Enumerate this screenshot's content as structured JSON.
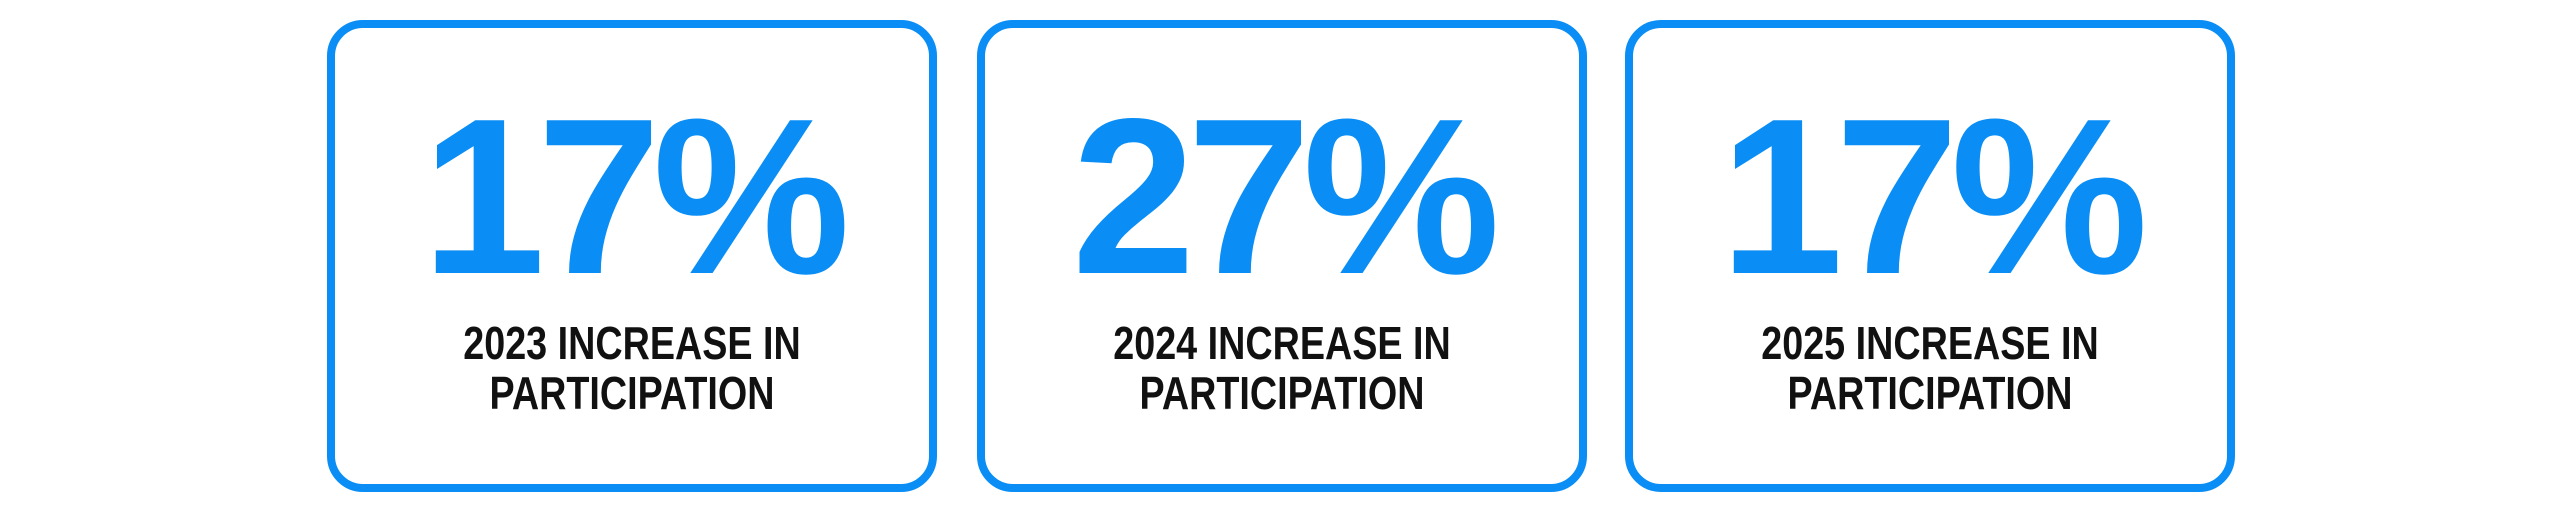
{
  "accent_color": "#0a8ef5",
  "cards": [
    {
      "value": "17%",
      "label_line1": "2023 INCREASE IN",
      "label_line2": "PARTICIPATION"
    },
    {
      "value": "27%",
      "label_line1": "2024 INCREASE IN",
      "label_line2": "PARTICIPATION"
    },
    {
      "value": "17%",
      "label_line1": "2025 INCREASE IN",
      "label_line2": "PARTICIPATION"
    }
  ]
}
